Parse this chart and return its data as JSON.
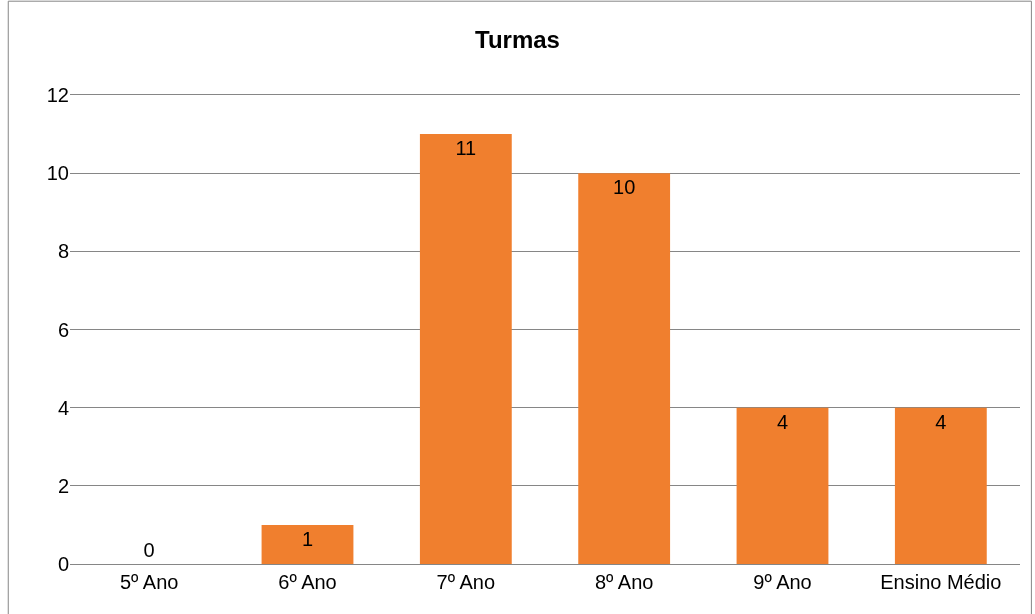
{
  "chart_data": {
    "type": "bar",
    "title": "Turmas",
    "categories": [
      "5º Ano",
      "6º Ano",
      "7º Ano",
      "8º Ano",
      "9º Ano",
      "Ensino Médio"
    ],
    "values": [
      0,
      1,
      11,
      10,
      4,
      4
    ],
    "color": "#f07f2e",
    "ylim": [
      0,
      12
    ],
    "yticks": [
      0,
      2,
      4,
      6,
      8,
      10,
      12
    ],
    "grid": "y",
    "data_labels": true
  }
}
